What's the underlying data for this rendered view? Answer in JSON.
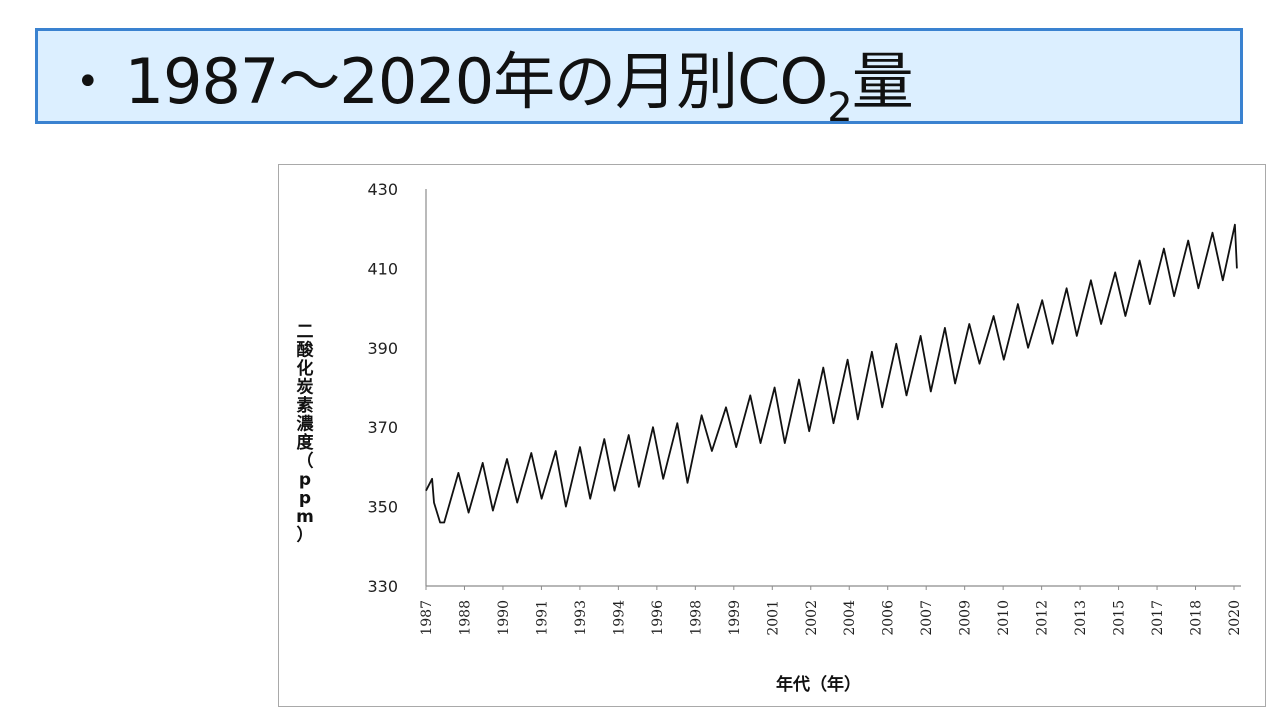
{
  "title": {
    "bullet": "•",
    "main": "1987～2020年の月別CO",
    "subscript": "2",
    "suffix": "量"
  },
  "chart_data": {
    "type": "line",
    "title": "",
    "xlabel": "年代（年）",
    "ylabel": "二酸化炭素濃度（ppm）",
    "ylim": [
      330,
      430
    ],
    "yticks": [
      330,
      350,
      370,
      390,
      410,
      430
    ],
    "xlim": [
      1987.0,
      2020.5
    ],
    "xtick_labels": [
      "1987",
      "1988",
      "1990",
      "1991",
      "1993",
      "1994",
      "1996",
      "1998",
      "1999",
      "2001",
      "2002",
      "2004",
      "2006",
      "2007",
      "2009",
      "2010",
      "2012",
      "2013",
      "2015",
      "2017",
      "2018",
      "2020"
    ],
    "grid": false,
    "line_color": "#111111",
    "series": [
      {
        "x": [
          1987.0,
          1987.25,
          1987.33,
          1987.58,
          1987.75,
          1988.33,
          1988.75,
          1989.33,
          1989.75,
          1990.33,
          1990.75,
          1991.33,
          1991.75,
          1992.33,
          1992.75,
          1993.33,
          1993.75,
          1994.33,
          1994.75,
          1995.33,
          1995.75,
          1996.33,
          1996.75,
          1997.33,
          1997.75,
          1998.33,
          1998.75,
          1999.33,
          1999.75,
          2000.33,
          2000.75,
          2001.33,
          2001.75,
          2002.33,
          2002.75,
          2003.33,
          2003.75,
          2004.33,
          2004.75,
          2005.33,
          2005.75,
          2006.33,
          2006.75,
          2007.33,
          2007.75,
          2008.33,
          2008.75,
          2009.33,
          2009.75,
          2010.33,
          2010.75,
          2011.33,
          2011.75,
          2012.33,
          2012.75,
          2013.33,
          2013.75,
          2014.33,
          2014.75,
          2015.33,
          2015.75,
          2016.33,
          2016.75,
          2017.33,
          2017.75,
          2018.33,
          2018.75,
          2019.33,
          2019.75,
          2020.25,
          2020.33
        ],
        "y": [
          354.0,
          357.0,
          351.0,
          346.0,
          346.0,
          358.5,
          348.5,
          361.0,
          349.0,
          362.0,
          351.0,
          363.5,
          352.0,
          364.0,
          350.0,
          365.0,
          352.0,
          367.0,
          354.0,
          368.0,
          355.0,
          370.0,
          357.0,
          371.0,
          356.0,
          373.0,
          364.0,
          375.0,
          365.0,
          378.0,
          366.0,
          380.0,
          366.0,
          382.0,
          369.0,
          385.0,
          371.0,
          387.0,
          372.0,
          389.0,
          375.0,
          391.0,
          378.0,
          393.0,
          379.0,
          395.0,
          381.0,
          396.0,
          386.0,
          398.0,
          387.0,
          401.0,
          390.0,
          402.0,
          391.0,
          405.0,
          393.0,
          407.0,
          396.0,
          409.0,
          398.0,
          412.0,
          401.0,
          415.0,
          403.0,
          417.0,
          405.0,
          419.0,
          407.0,
          421.0,
          410.0
        ]
      }
    ]
  }
}
